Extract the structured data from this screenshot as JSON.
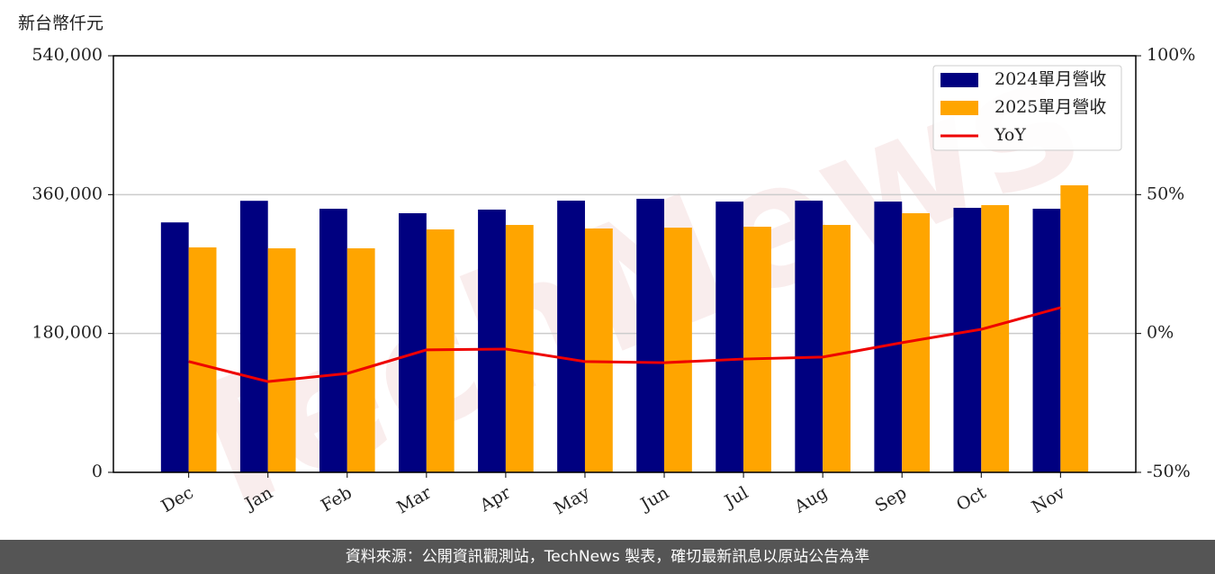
{
  "chart_data": {
    "type": "bar_line",
    "y_label": "新台幣仟元",
    "watermark": "TechNews",
    "footer": "資料來源：公開資訊觀測站，TechNews 製表，確切最新訊息以原站公告為準",
    "categories": [
      "Dec",
      "Jan",
      "Feb",
      "Mar",
      "Apr",
      "May",
      "Jun",
      "Jul",
      "Aug",
      "Sep",
      "Oct",
      "Nov"
    ],
    "series": [
      {
        "name": "2024單月營收",
        "color": "#000080",
        "type": "bar",
        "values": [
          324000,
          352000,
          341700,
          335900,
          340600,
          352200,
          354600,
          351000,
          352200,
          351000,
          342900,
          341700
        ]
      },
      {
        "name": "2025單月營收",
        "color": "#ffa500",
        "type": "bar",
        "values": [
          291600,
          290400,
          290400,
          314900,
          320700,
          316100,
          317200,
          318400,
          320700,
          335900,
          346400,
          372100
        ]
      },
      {
        "name": "YoY",
        "color": "#ee0000",
        "type": "line",
        "axis": "y2",
        "values": [
          -10.1,
          -17.3,
          -14.4,
          -5.9,
          -5.6,
          -10.1,
          -10.5,
          -9.2,
          -8.5,
          -3.3,
          1.5,
          9.3
        ]
      }
    ],
    "ylim": [
      0,
      540000
    ],
    "yticks": [
      0,
      {
        "value": 180000,
        "label": "180,000"
      },
      {
        "value": 360000,
        "label": "360,000"
      },
      {
        "value": 540000,
        "label": "540,000"
      }
    ],
    "y2lim": [
      -50,
      100
    ],
    "y2ticks": [
      {
        "value": -50,
        "label": "-50%"
      },
      {
        "value": 0,
        "label": "0%"
      },
      {
        "value": 50,
        "label": "50%"
      },
      {
        "value": 100,
        "label": "100%"
      }
    ],
    "grid": true,
    "legend": "upper right"
  }
}
